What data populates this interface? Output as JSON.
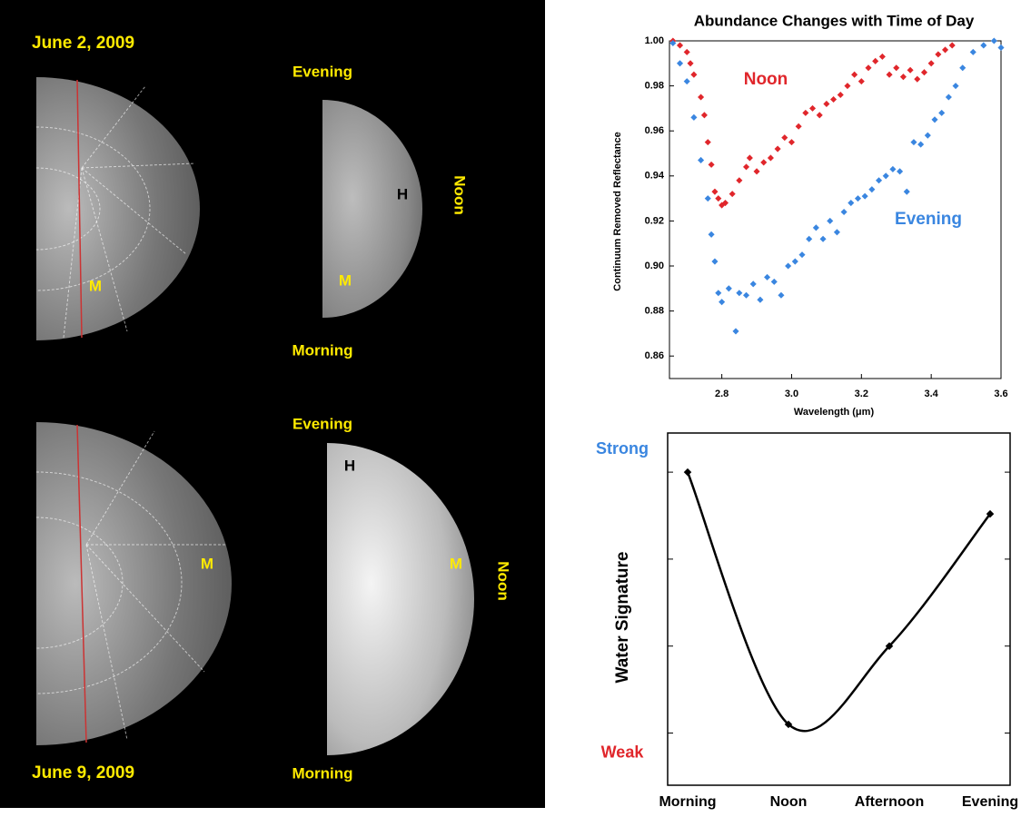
{
  "images": [
    {
      "date": "June 2, 2009",
      "top_label": "Evening",
      "side_label": "Noon",
      "bottom_label": "Morning",
      "left_marks": [
        "M"
      ],
      "right_marks": [
        "H",
        "M"
      ]
    },
    {
      "date": "June 9, 2009",
      "top_label": "Evening",
      "side_label": "Noon",
      "bottom_label": "Morning",
      "left_marks": [
        "M"
      ],
      "right_marks": [
        "H",
        "M"
      ]
    }
  ],
  "chart_data": [
    {
      "type": "scatter",
      "title": "Abundance Changes with Time of Day",
      "xlabel": "Wavelength (μm)",
      "ylabel": "Continuum Removed Reflectance",
      "xlim": [
        2.65,
        3.6
      ],
      "ylim": [
        0.85,
        1.0
      ],
      "xticks": [
        2.8,
        {
          "value": 3,
          "label": "3.0"
        },
        3.2,
        3.4,
        3.6
      ],
      "yticks": [
        0.86,
        0.88,
        {
          "value": 0.9,
          "label": "0.90"
        },
        0.92,
        0.94,
        0.96,
        0.98,
        {
          "value": 1,
          "label": "1.00"
        }
      ],
      "series": [
        {
          "name": "Noon",
          "color": "#e0262b",
          "x": [
            2.66,
            2.68,
            2.7,
            2.71,
            2.72,
            2.74,
            2.75,
            2.76,
            2.77,
            2.78,
            2.79,
            2.8,
            2.81,
            2.83,
            2.85,
            2.87,
            2.88,
            2.9,
            2.92,
            2.94,
            2.96,
            2.98,
            3.0,
            3.02,
            3.04,
            3.06,
            3.08,
            3.1,
            3.12,
            3.14,
            3.16,
            3.18,
            3.2,
            3.22,
            3.24,
            3.26,
            3.28,
            3.3,
            3.32,
            3.34,
            3.36,
            3.38,
            3.4,
            3.42,
            3.44,
            3.46
          ],
          "values": [
            1.0,
            0.998,
            0.995,
            0.99,
            0.985,
            0.975,
            0.967,
            0.955,
            0.945,
            0.933,
            0.93,
            0.927,
            0.928,
            0.932,
            0.938,
            0.944,
            0.948,
            0.942,
            0.946,
            0.948,
            0.952,
            0.957,
            0.955,
            0.962,
            0.968,
            0.97,
            0.967,
            0.972,
            0.974,
            0.976,
            0.98,
            0.985,
            0.982,
            0.988,
            0.991,
            0.993,
            0.985,
            0.988,
            0.984,
            0.987,
            0.983,
            0.986,
            0.99,
            0.994,
            0.996,
            0.998
          ]
        },
        {
          "name": "Evening",
          "color": "#3a86e0",
          "x": [
            2.66,
            2.68,
            2.7,
            2.72,
            2.74,
            2.76,
            2.77,
            2.78,
            2.79,
            2.8,
            2.82,
            2.84,
            2.85,
            2.87,
            2.89,
            2.91,
            2.93,
            2.95,
            2.97,
            2.99,
            3.01,
            3.03,
            3.05,
            3.07,
            3.09,
            3.11,
            3.13,
            3.15,
            3.17,
            3.19,
            3.21,
            3.23,
            3.25,
            3.27,
            3.29,
            3.31,
            3.33,
            3.35,
            3.37,
            3.39,
            3.41,
            3.43,
            3.45,
            3.47,
            3.49,
            3.52,
            3.55,
            3.58,
            3.6
          ],
          "values": [
            0.999,
            0.99,
            0.982,
            0.966,
            0.947,
            0.93,
            0.914,
            0.902,
            0.888,
            0.884,
            0.89,
            0.871,
            0.888,
            0.887,
            0.892,
            0.885,
            0.895,
            0.893,
            0.887,
            0.9,
            0.902,
            0.905,
            0.912,
            0.917,
            0.912,
            0.92,
            0.915,
            0.924,
            0.928,
            0.93,
            0.931,
            0.934,
            0.938,
            0.94,
            0.943,
            0.942,
            0.933,
            0.955,
            0.954,
            0.958,
            0.965,
            0.968,
            0.975,
            0.98,
            0.988,
            0.995,
            0.998,
            1.0,
            0.997
          ]
        }
      ]
    },
    {
      "type": "line",
      "ylabel": "Water Signature",
      "categories": [
        "Morning",
        "Noon",
        "Afternoon",
        "Evening"
      ],
      "values": [
        4,
        1.1,
        2,
        3.52
      ],
      "color": "#000000",
      "ylim": [
        0.4,
        4.45
      ],
      "yticks": [
        1,
        2,
        3,
        4
      ],
      "annotations": [
        {
          "text": "Strong",
          "y": 4.26,
          "color": "#3a86e0"
        },
        {
          "text": "Weak",
          "y": 0.77,
          "color": "#e0262b"
        }
      ]
    }
  ]
}
